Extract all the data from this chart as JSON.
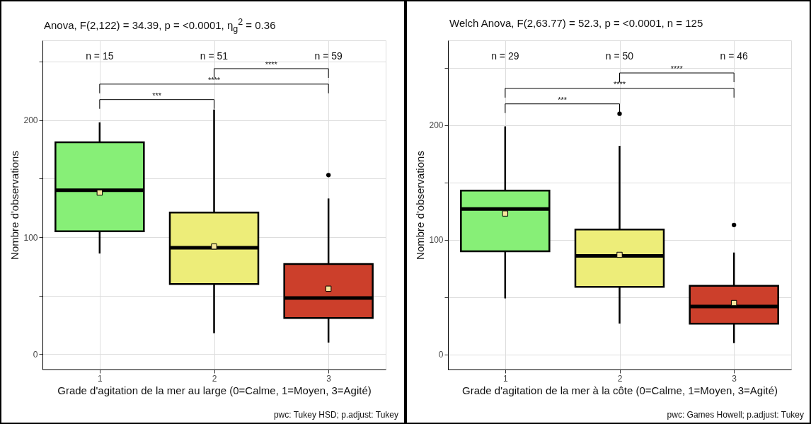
{
  "chart_data": [
    {
      "type": "box",
      "title": "Anova, F(2,122) = 34.39, p = <0.0001, η$_{g}$$^{2}$ = 0.36",
      "xlabel": "Grade d'agitation de la mer au large (0=Calme, 1=Moyen, 3=Agité)",
      "ylabel": "Nombre d'observations",
      "categories": [
        "1",
        "2",
        "3"
      ],
      "colors": [
        "#87ef77",
        "#eded79",
        "#cc3f2b"
      ],
      "boxes": [
        {
          "low": 86,
          "q1": 105,
          "median": 140,
          "q3": 181,
          "high": 198,
          "mean": 138
        },
        {
          "low": 18,
          "q1": 60,
          "median": 91,
          "q3": 121,
          "high": 209,
          "mean": 92
        },
        {
          "low": 10,
          "q1": 31,
          "median": 48,
          "q3": 77,
          "high": 133,
          "mean": 56,
          "outliers": [
            153
          ]
        }
      ],
      "ylim": [
        -13,
        268
      ],
      "yticks": [
        0,
        {
          "value": 50,
          "label": null
        },
        100,
        {
          "value": 150,
          "label": null
        },
        200,
        {
          "value": 250,
          "label": null
        }
      ],
      "grid": true,
      "annotations": [
        "n = 15",
        "n = 51",
        "n = 59",
        "***",
        "****",
        "****",
        "pwc: Tukey HSD; p.adjust: Tukey"
      ]
    },
    {
      "type": "box",
      "title": "Welch Anova, F(2,63.77) = 52.3, p = <0.0001, n = 125",
      "xlabel": "Grade d'agitation de la mer à la côte (0=Calme, 1=Moyen, 3=Agité)",
      "ylabel": "Nombre d'observations",
      "categories": [
        "1",
        "2",
        "3"
      ],
      "colors": [
        "#87ef77",
        "#eded79",
        "#cc3f2b"
      ],
      "boxes": [
        {
          "low": 49,
          "q1": 90,
          "median": 127,
          "q3": 143,
          "high": 199,
          "mean": 123
        },
        {
          "low": 27,
          "q1": 59,
          "median": 86,
          "q3": 109,
          "high": 182,
          "mean": 87,
          "outliers": [
            210
          ]
        },
        {
          "low": 10,
          "q1": 27,
          "median": 42,
          "q3": 60,
          "high": 89,
          "mean": 45,
          "outliers": [
            113
          ]
        }
      ],
      "ylim": [
        -13,
        274
      ],
      "yticks": [
        0,
        {
          "value": 50,
          "label": null
        },
        100,
        {
          "value": 150,
          "label": null
        },
        200,
        {
          "value": 250,
          "label": null
        }
      ],
      "grid": true,
      "annotations": [
        "n = 29",
        "n = 50",
        "n = 46",
        "***",
        "****",
        "****",
        "pwc: Games Howell; p.adjust: Tukey"
      ]
    }
  ]
}
